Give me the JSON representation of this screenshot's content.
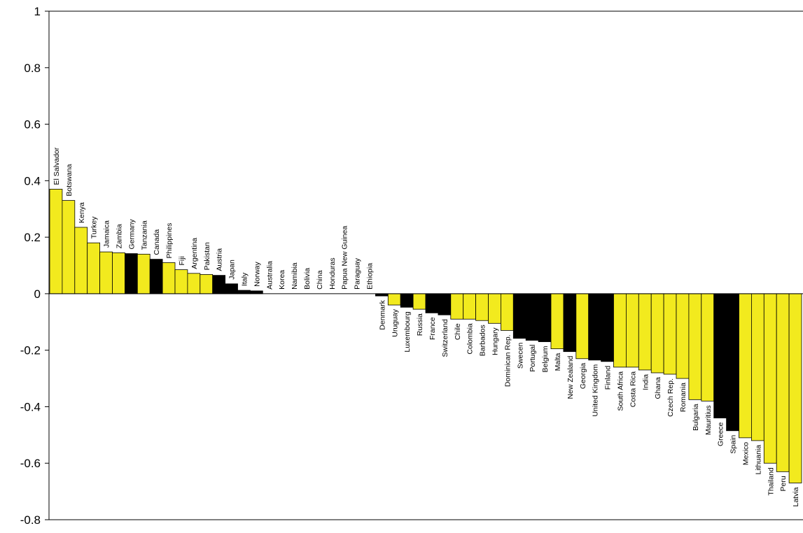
{
  "chart_data": {
    "type": "bar",
    "title": "",
    "xlabel": "",
    "ylabel": "",
    "ylim": [
      -0.8,
      1
    ],
    "yticks": [
      1,
      0.8,
      0.6,
      0.4,
      0.2,
      0,
      -0.2,
      -0.4,
      -0.6,
      -0.8
    ],
    "ytick_labels": [
      "1",
      "0.8",
      "0.6",
      "0.4",
      "0.2",
      "0",
      "-0.2",
      "-0.4",
      "-0.6",
      "-0.8"
    ],
    "grid": false,
    "legend": "none",
    "colors": {
      "yellow": "#f2ea1e",
      "black": "#000000"
    },
    "categories": [
      "El Salvador",
      "Botswana",
      "Kenya",
      "Turkey",
      "Jamaica",
      "Zambia",
      "Germany",
      "Tanzania",
      "Canada",
      "Philippines",
      "Fiji",
      "Argentina",
      "Pakistan",
      "Austria",
      "Japan",
      "Italy",
      "Norway",
      "Australia",
      "Korea",
      "Namibia",
      "Bolivia",
      "China",
      "Honduras",
      "Papua New Guinea",
      "Paraguay",
      "Ethiopia",
      "Denmark",
      "Uruguay",
      "Luxembourg",
      "Russia",
      "France",
      "Switzerland",
      "Chile",
      "Colombia",
      "Barbados",
      "Hungary",
      "Dominican Rep.",
      "Swecen",
      "Portugal",
      "Belgium",
      "Malta",
      "New Zealand",
      "Georgia",
      "United Kingdom",
      "Finland",
      "South Africa",
      "Costa Rica",
      "India",
      "Ghana",
      "Czech Rep.",
      "Romania",
      "Bulgaria",
      "Mauritius",
      "Greece",
      "Spain",
      "Mexico",
      "Lithuania",
      "Thailand",
      "Peru",
      "Latvia"
    ],
    "values": [
      0.37,
      0.33,
      0.235,
      0.18,
      0.148,
      0.145,
      0.142,
      0.14,
      0.122,
      0.11,
      0.085,
      0.072,
      0.068,
      0.065,
      0.035,
      0.012,
      0.01,
      0,
      0,
      0,
      0,
      0,
      0,
      0,
      0,
      0,
      -0.008,
      -0.04,
      -0.048,
      -0.055,
      -0.068,
      -0.075,
      -0.09,
      -0.09,
      -0.095,
      -0.105,
      -0.13,
      -0.158,
      -0.165,
      -0.17,
      -0.195,
      -0.205,
      -0.23,
      -0.235,
      -0.24,
      -0.26,
      -0.26,
      -0.27,
      -0.28,
      -0.285,
      -0.3,
      -0.375,
      -0.38,
      -0.44,
      -0.485,
      -0.51,
      -0.52,
      -0.6,
      -0.63,
      -0.67
    ],
    "bar_colors": [
      "yellow",
      "yellow",
      "yellow",
      "yellow",
      "yellow",
      "yellow",
      "black",
      "yellow",
      "black",
      "yellow",
      "yellow",
      "yellow",
      "yellow",
      "black",
      "black",
      "black",
      "black",
      "yellow",
      "yellow",
      "yellow",
      "yellow",
      "yellow",
      "yellow",
      "yellow",
      "yellow",
      "yellow",
      "black",
      "yellow",
      "black",
      "yellow",
      "black",
      "black",
      "yellow",
      "yellow",
      "yellow",
      "yellow",
      "yellow",
      "black",
      "black",
      "black",
      "yellow",
      "black",
      "yellow",
      "black",
      "black",
      "yellow",
      "yellow",
      "yellow",
      "yellow",
      "yellow",
      "yellow",
      "yellow",
      "yellow",
      "black",
      "black",
      "yellow",
      "yellow",
      "yellow",
      "yellow",
      "yellow"
    ]
  }
}
